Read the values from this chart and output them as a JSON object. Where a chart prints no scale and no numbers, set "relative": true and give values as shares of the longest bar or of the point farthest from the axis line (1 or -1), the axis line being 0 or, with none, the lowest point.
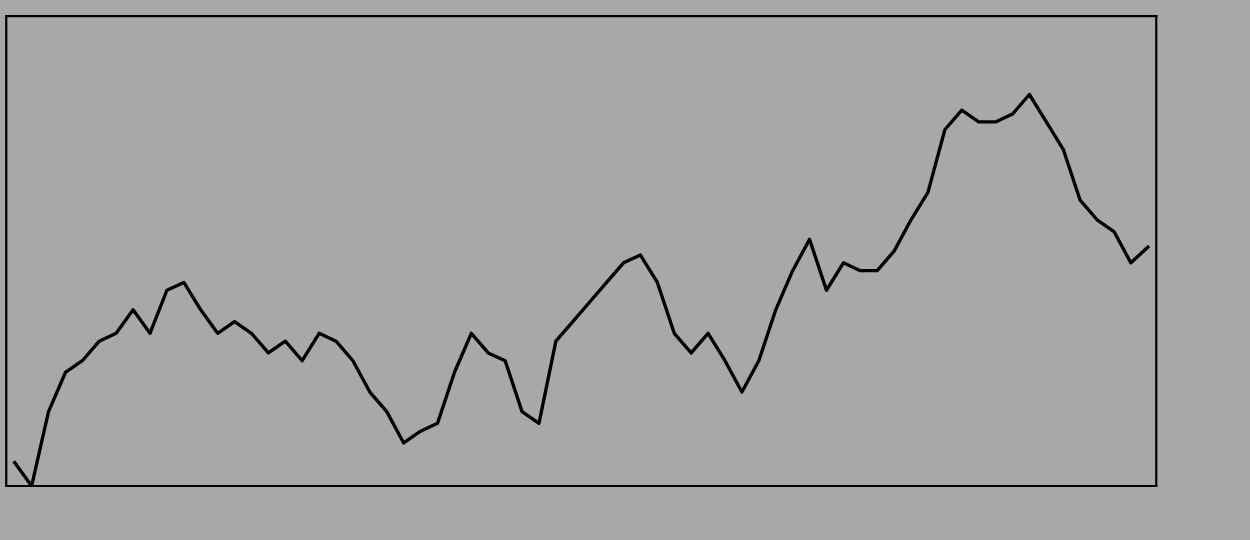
{
  "chart_data": {
    "type": "line",
    "relative": true,
    "grid": false,
    "legend": false,
    "tick_labels": false,
    "categories": [
      null,
      null,
      null,
      null,
      null,
      null,
      null,
      null,
      null,
      null,
      null,
      null,
      null,
      null,
      null,
      null,
      null,
      null,
      null,
      null,
      null,
      null,
      null,
      null,
      null,
      null,
      null,
      null,
      null,
      null,
      null,
      null,
      null,
      null,
      null,
      null,
      null,
      null,
      null,
      null,
      null,
      null,
      null,
      null,
      null,
      null,
      null,
      null,
      null,
      null,
      null,
      null,
      null,
      null,
      null,
      null,
      null,
      null,
      null,
      null,
      null,
      null,
      null,
      null,
      null,
      null,
      null,
      null
    ],
    "series": [
      {
        "color": "#000000",
        "values": [
          0.06,
          0,
          0.19,
          0.29,
          0.32,
          0.37,
          0.39,
          0.45,
          0.39,
          0.5,
          0.52,
          0.45,
          0.39,
          0.42,
          0.39,
          0.34,
          0.37,
          0.32,
          0.39,
          0.37,
          0.32,
          0.24,
          0.19,
          0.11,
          0.14,
          0.16,
          0.29,
          0.39,
          0.34,
          0.32,
          0.19,
          0.16,
          0.37,
          0.42,
          0.47,
          0.52,
          0.57,
          0.59,
          0.52,
          0.39,
          0.34,
          0.39,
          0.32,
          0.24,
          0.32,
          0.45,
          0.55,
          0.63,
          0.5,
          0.57,
          0.55,
          0.55,
          0.6,
          0.68,
          0.75,
          0.91,
          0.96,
          0.93,
          0.93,
          0.95,
          1,
          0.93,
          0.86,
          0.73,
          0.68,
          0.65,
          0.57,
          0.61
        ]
      }
    ]
  }
}
